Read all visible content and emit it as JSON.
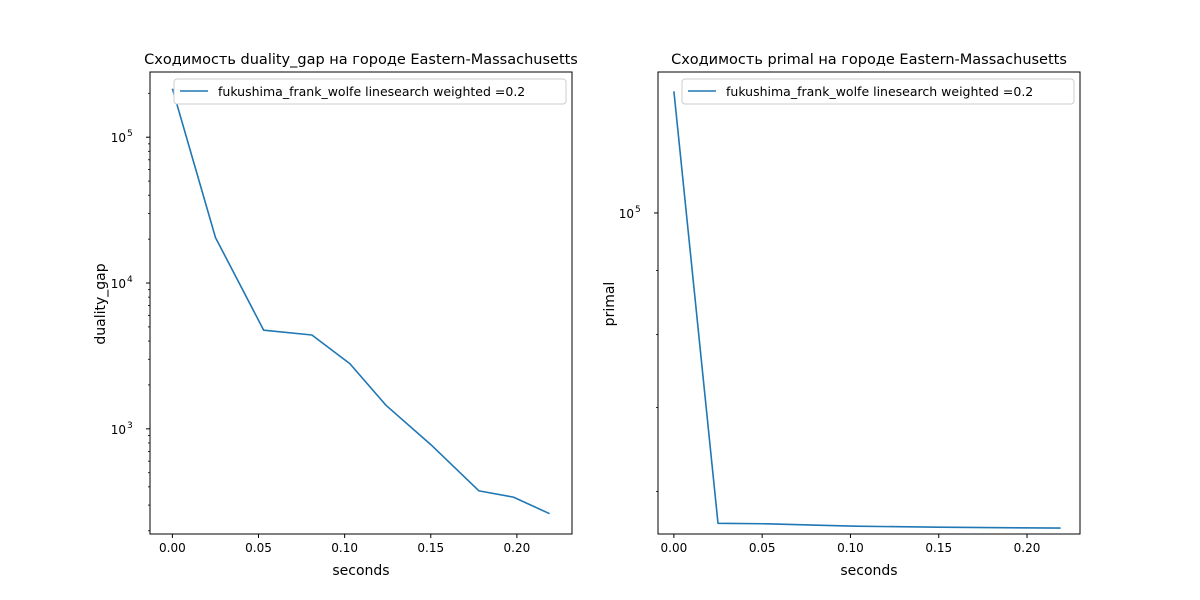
{
  "chart_data": [
    {
      "type": "line",
      "title": "Сходимость duality_gap на городе Eastern-Massachusetts",
      "xlabel": "seconds",
      "ylabel": "duality_gap",
      "yscale": "log",
      "xlim": [
        -0.013,
        0.232
      ],
      "ylim": [
        190,
        280000
      ],
      "xticks": [
        "0.00",
        "0.05",
        "0.10",
        "0.15",
        "0.20"
      ],
      "yticks": [
        {
          "base": "10",
          "exp": "3",
          "value": 1000
        },
        {
          "base": "10",
          "exp": "4",
          "value": 10000
        },
        {
          "base": "10",
          "exp": "5",
          "value": 100000
        }
      ],
      "legend_position": "upper right",
      "series": [
        {
          "name": "fukushima_frank_wolfe linesearch weighted =0.2",
          "color": "#1f77b4",
          "x": [
            0.0,
            0.025,
            0.053,
            0.081,
            0.103,
            0.124,
            0.15,
            0.178,
            0.198,
            0.219
          ],
          "y": [
            215000,
            20500,
            4750,
            4400,
            2800,
            1450,
            780,
            375,
            340,
            262
          ]
        }
      ]
    },
    {
      "type": "line",
      "title": "Сходимость primal на городе Eastern-Massachusetts",
      "xlabel": "seconds",
      "ylabel": "primal",
      "yscale": "log",
      "xlim": [
        -0.009,
        0.23
      ],
      "ylim": [
        55500,
        129500
      ],
      "xticks": [
        "0.00",
        "0.05",
        "0.10",
        "0.15",
        "0.20"
      ],
      "yticks": [
        {
          "base": "10",
          "exp": "5",
          "value": 100000
        }
      ],
      "minor_yticks": [
        60000,
        70000,
        80000,
        90000
      ],
      "legend_position": "upper right",
      "series": [
        {
          "name": "fukushima_frank_wolfe linesearch weighted =0.2",
          "color": "#1f77b4",
          "x": [
            0.0,
            0.025,
            0.053,
            0.081,
            0.103,
            0.15,
            0.219
          ],
          "y": [
            125000,
            56600,
            56550,
            56400,
            56300,
            56200,
            56100
          ]
        }
      ]
    }
  ]
}
